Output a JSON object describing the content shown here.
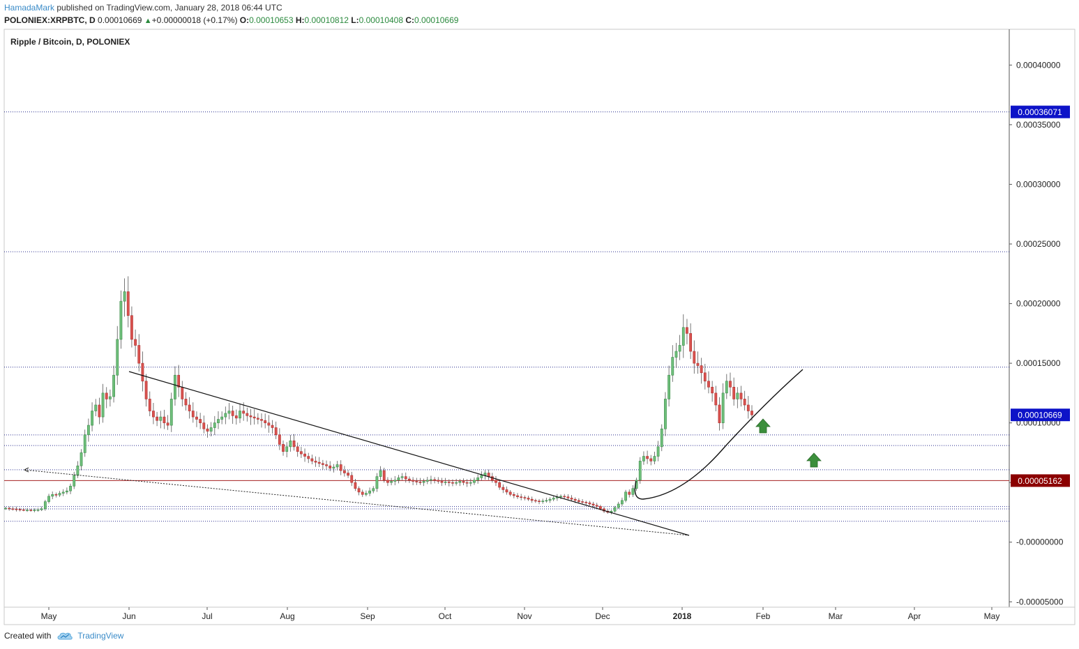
{
  "header": {
    "author": "HamadaMark",
    "published_text": "published on TradingView.com, January 28, 2018 06:44 UTC",
    "symbol": "POLONIEX:XRPBTC, D",
    "price": "0.00010669",
    "change_arrow": "▲",
    "change": "+0.00000018 (+0.17%)",
    "open_label": "O:",
    "open": "0.00010653",
    "high_label": "H:",
    "high": "0.00010812",
    "low_label": "L:",
    "low": "0.00010408",
    "close_label": "C:",
    "close": "0.00010669"
  },
  "chart_data": {
    "type": "candlestick",
    "title": "Ripple / Bitcoin, D, POLONIEX",
    "x_ticks": [
      "May",
      "Jun",
      "Jul",
      "Aug",
      "Sep",
      "Oct",
      "Nov",
      "Dec",
      "2018",
      "Feb",
      "Mar",
      "Apr",
      "May"
    ],
    "y_ticks": [
      "0.00040000",
      "0.00035000",
      "0.00030000",
      "0.00025000",
      "0.00020000",
      "0.00015000",
      "0.00010000",
      "0.00005000",
      "-0.00000000",
      "-0.00005000"
    ],
    "y_tick_values": [
      0.0004,
      0.00035,
      0.0003,
      0.00025,
      0.0002,
      0.00015,
      0.0001,
      5e-05,
      0,
      -5e-05
    ],
    "ylim": [
      -5.45e-05,
      0.00043
    ],
    "price_labels": [
      {
        "text": "0.00036071",
        "value": 0.00036071,
        "color": "#0d13c8"
      },
      {
        "text": "0.00010669",
        "value": 0.00010669,
        "color": "#0d13c8"
      },
      {
        "text": "0.00005162",
        "value": 5.162e-05,
        "color": "#8b0000"
      }
    ],
    "horizontal_levels": [
      0.00036071,
      0.0002435,
      0.00014675,
      8.99e-05,
      8.1e-05,
      6.07e-05,
      2.99e-05,
      2.79e-05,
      1.75e-05
    ],
    "red_level": 5.162e-05,
    "close_series": [
      2.85e-05,
      2.8e-05,
      2.78e-05,
      2.75e-05,
      2.72e-05,
      2.7e-05,
      2.7e-05,
      2.68e-05,
      2.7e-05,
      2.72e-05,
      2.8e-05,
      3.4e-05,
      3.85e-05,
      4e-05,
      3.95e-05,
      4.1e-05,
      4.2e-05,
      4.3e-05,
      4.7e-05,
      5.6e-05,
      6.4e-05,
      7.5e-05,
      9e-05,
      9.8e-05,
      0.00011,
      0.000115,
      0.000105,
      0.000125,
      0.00012,
      0.000122,
      0.00014,
      0.00017,
      0.000202,
      0.00021,
      0.00019,
      0.00017,
      0.000165,
      0.00015,
      0.000135,
      0.00012,
      0.00011,
      0.000105,
      0.000102,
      0.000105,
      0.0001,
      9.8e-05,
      0.00012,
      0.00014,
      0.00013,
      0.00012,
      0.000115,
      0.00011,
      0.000105,
      0.000103,
      0.0001,
      9.5e-05,
      9.3e-05,
      9.6e-05,
      0.0001,
      0.000103,
      0.000105,
      0.000108,
      0.00011,
      0.000106,
      0.000104,
      0.00011,
      0.000108,
      0.000106,
      0.000105,
      0.000104,
      0.000103,
      0.000102,
      0.0001,
      9.8e-05,
      9.6e-05,
      9e-05,
      8.2e-05,
      7.6e-05,
      8e-05,
      8.5e-05,
      8e-05,
      7.6e-05,
      7.4e-05,
      7.2e-05,
      7e-05,
      6.8e-05,
      6.7e-05,
      6.6e-05,
      6.5e-05,
      6.4e-05,
      6.2e-05,
      6.3e-05,
      6.5e-05,
      6e-05,
      5.8e-05,
      5.6e-05,
      5e-05,
      4.5e-05,
      4.2e-05,
      4e-05,
      4.1e-05,
      4.3e-05,
      4.5e-05,
      5.5e-05,
      6e-05,
      5.2e-05,
      5e-05,
      5.1e-05,
      5.2e-05,
      5.4e-05,
      5.5e-05,
      5.3e-05,
      5.2e-05,
      5.1e-05,
      5.05e-05,
      5e-05,
      5.1e-05,
      5.2e-05,
      5.25e-05,
      5.2e-05,
      5.1e-05,
      5e-05,
      5.05e-05,
      5e-05,
      4.95e-05,
      5e-05,
      5.1e-05,
      5e-05,
      4.95e-05,
      5e-05,
      5.2e-05,
      5.4e-05,
      5.6e-05,
      5.8e-05,
      5.5e-05,
      5.2e-05,
      5e-05,
      4.6e-05,
      4.4e-05,
      4.2e-05,
      4e-05,
      3.9e-05,
      3.8e-05,
      3.75e-05,
      3.7e-05,
      3.6e-05,
      3.5e-05,
      3.45e-05,
      3.4e-05,
      3.45e-05,
      3.5e-05,
      3.6e-05,
      3.7e-05,
      3.8e-05,
      3.85e-05,
      3.8e-05,
      3.7e-05,
      3.6e-05,
      3.5e-05,
      3.4e-05,
      3.35e-05,
      3.3e-05,
      3.2e-05,
      3.1e-05,
      3e-05,
      2.8e-05,
      2.6e-05,
      2.5e-05,
      2.6e-05,
      2.9e-05,
      3.2e-05,
      3.5e-05,
      4.2e-05,
      4e-05,
      4.5e-05,
      5.2e-05,
      6.8e-05,
      7.2e-05,
      7e-05,
      6.8e-05,
      7.2e-05,
      8e-05,
      9.5e-05,
      0.00012,
      0.00014,
      0.000155,
      0.00016,
      0.000165,
      0.00018,
      0.000175,
      0.00016,
      0.00015,
      0.000148,
      0.000142,
      0.000135,
      0.00013,
      0.000125,
      0.000115,
      0.0001,
      0.000125,
      0.000135,
      0.00013,
      0.00012,
      0.000125,
      0.00012,
      0.000115,
      0.00011,
      0.0001067
    ],
    "annotations": [
      {
        "type": "trendline",
        "from": [
          "2017-06-01",
          0.000143
        ],
        "to": [
          "2017-12-19",
          -4.5e-06
        ]
      },
      {
        "type": "dotted-trendline",
        "from": [
          "2017-04-23",
          5.9e-05
        ],
        "to": [
          "2017-12-19",
          -4.5e-06
        ]
      },
      {
        "type": "curve",
        "note": "rounded support curve from mid-Dec to mid-Feb"
      },
      {
        "type": "up-arrow",
        "color": "#3c8f3c",
        "count": 2
      }
    ]
  },
  "footer": {
    "created_with": "Created with",
    "brand": "TradingView"
  }
}
